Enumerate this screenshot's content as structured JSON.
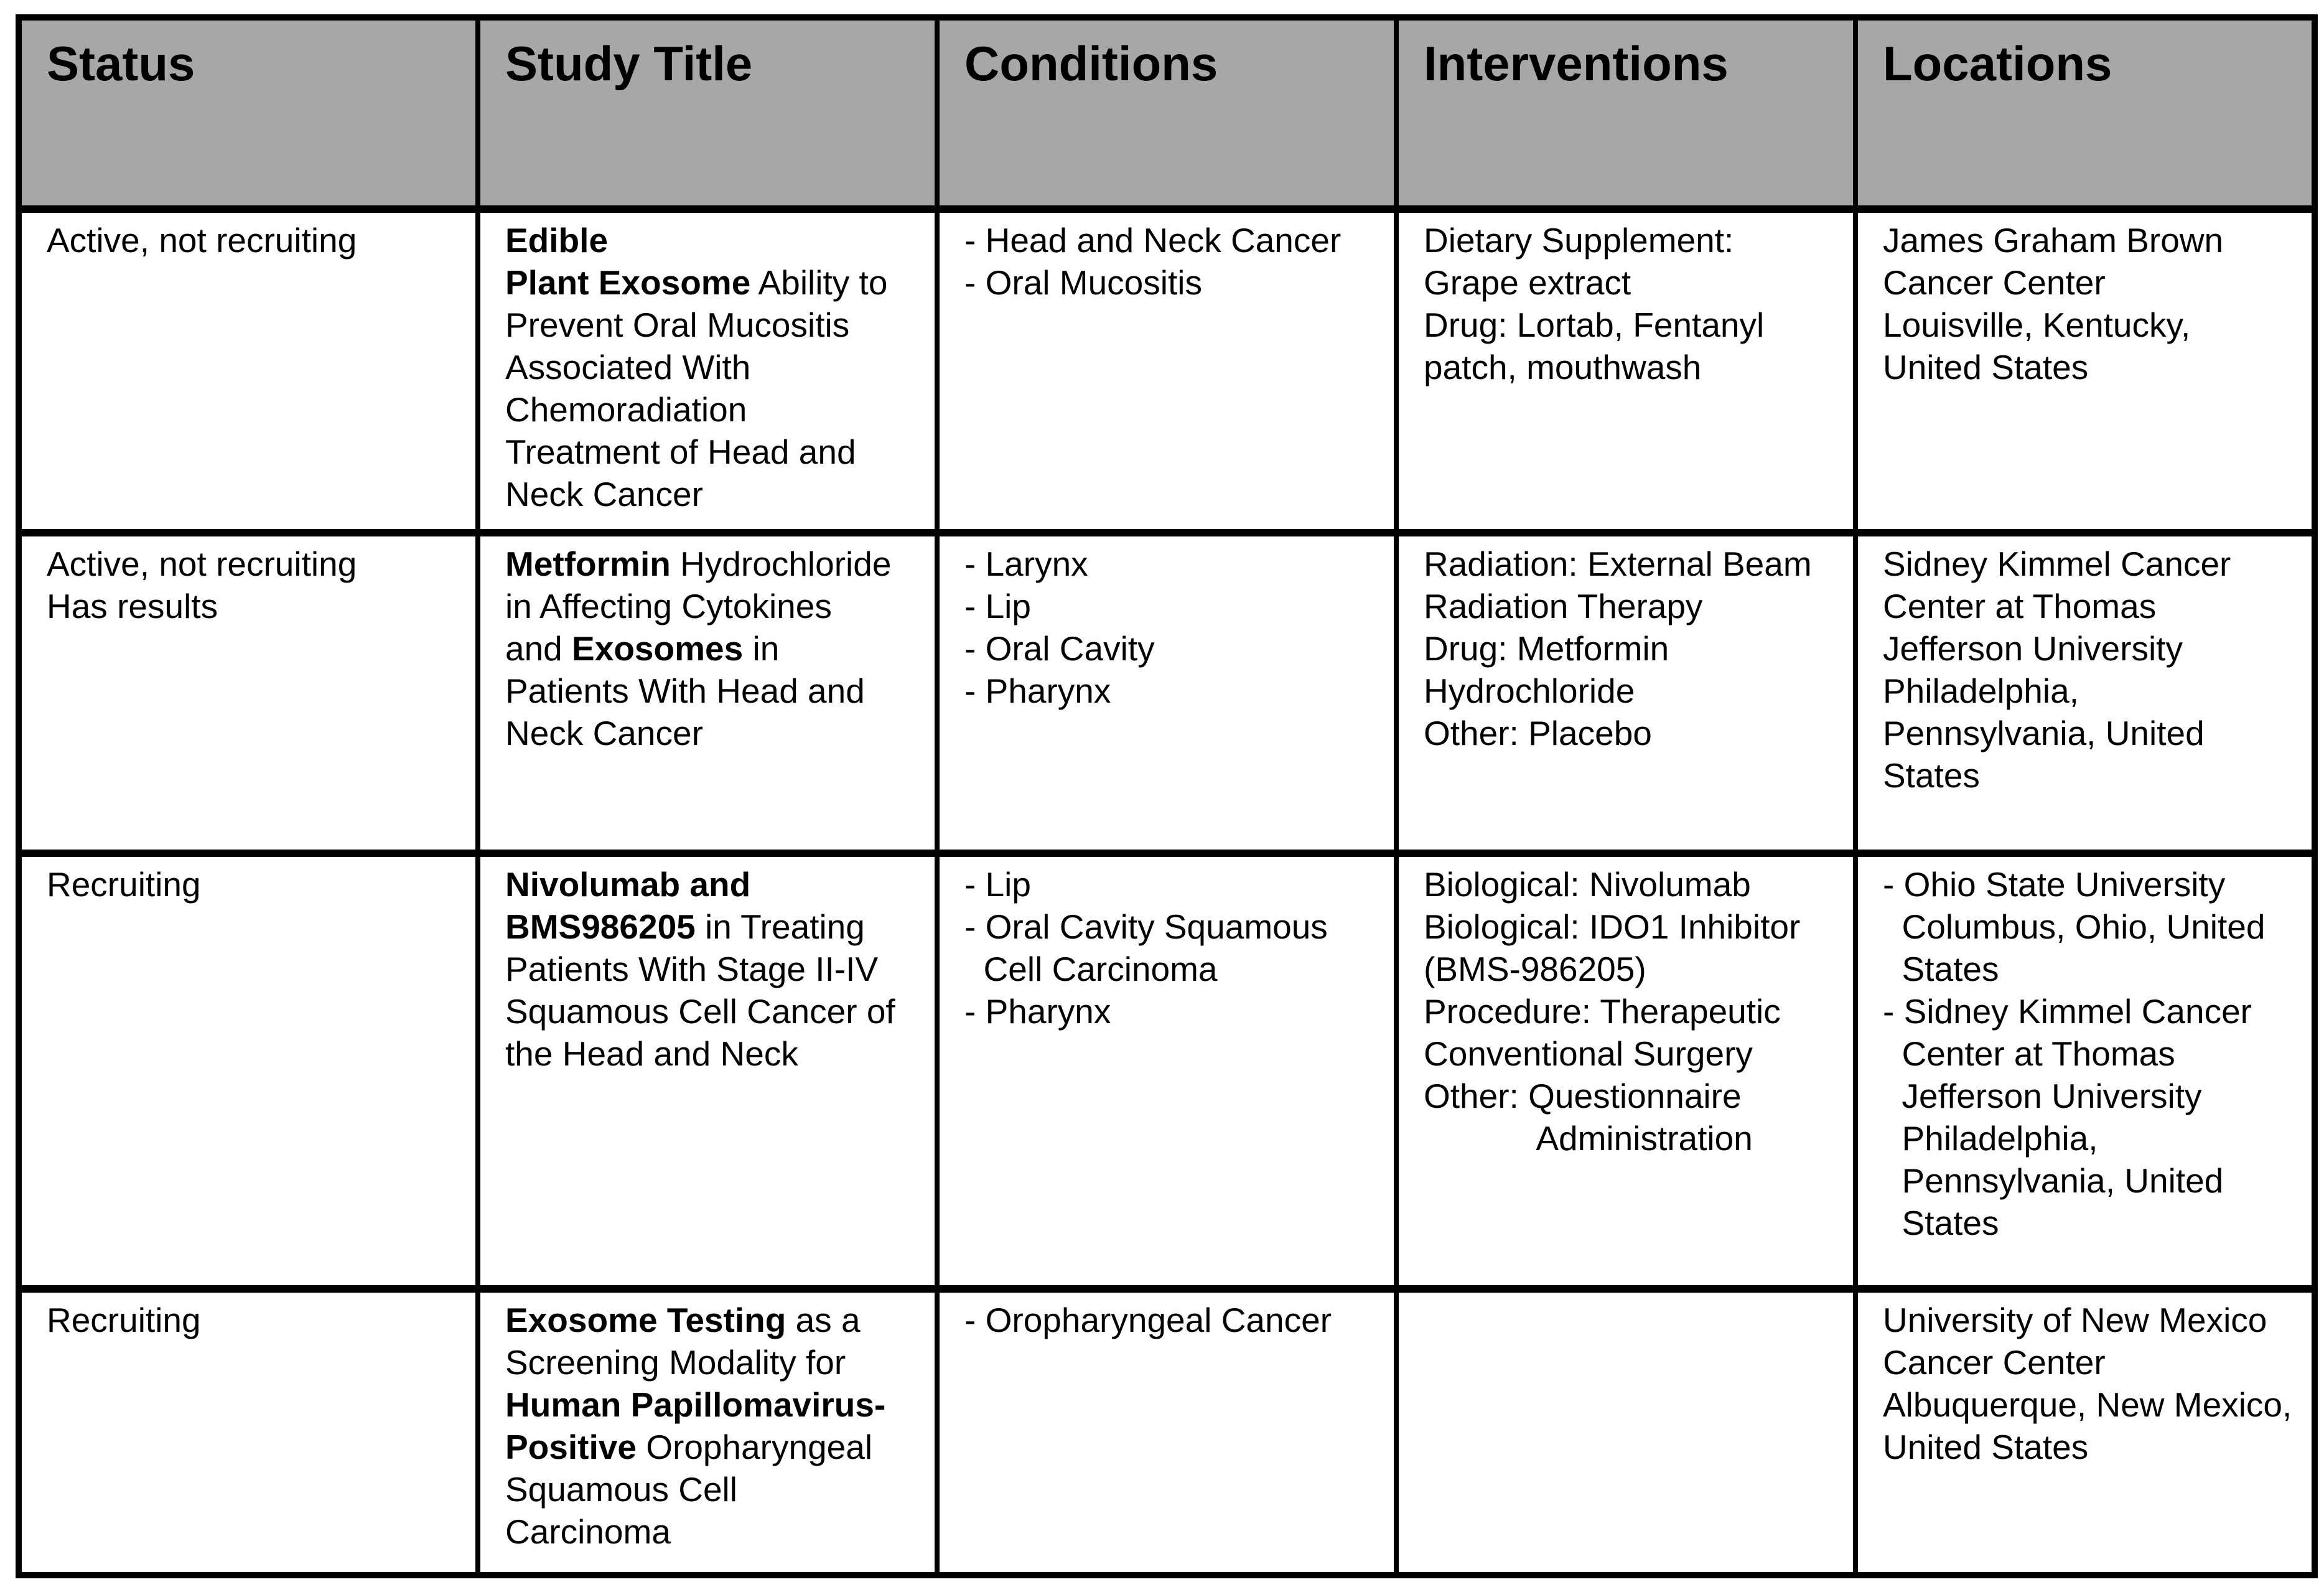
{
  "colors": {
    "header_bg": "#a7a7a7",
    "border": "#000000",
    "text": "#000000",
    "background": "#ffffff"
  },
  "table": {
    "header": {
      "columns": [
        {
          "label": "Status"
        },
        {
          "label": "Study Title"
        },
        {
          "label": "Conditions"
        },
        {
          "label": "Interventions"
        },
        {
          "label": "Locations"
        }
      ]
    },
    "rows": [
      {
        "status": "Active, not recruiting",
        "title": [
          {
            "t": "Edible\nPlant Exosome",
            "b": true
          },
          {
            "t": " Ability to\nPrevent Oral Mucositis\nAssociated With\nChemoradiation\nTreatment of Head and\nNeck Cancer",
            "b": false
          }
        ],
        "conditions": "- Head and Neck Cancer\n- Oral Mucositis",
        "interventions": "Dietary Supplement:\nGrape extract\nDrug: Lortab, Fentanyl\npatch, mouthwash",
        "locations": "James Graham Brown\nCancer Center\nLouisville, Kentucky,\nUnited States"
      },
      {
        "status": "Active, not recruiting\nHas results",
        "title": [
          {
            "t": "Metformin",
            "b": true
          },
          {
            "t": " Hydrochloride\nin Affecting Cytokines\nand ",
            "b": false
          },
          {
            "t": "Exosomes",
            "b": true
          },
          {
            "t": " in\nPatients With Head and\nNeck Cancer",
            "b": false
          }
        ],
        "conditions": "- Larynx\n- Lip\n- Oral Cavity\n- Pharynx",
        "interventions": "Radiation: External Beam\nRadiation Therapy\nDrug: Metformin\nHydrochloride\nOther: Placebo",
        "locations": "Sidney Kimmel Cancer\nCenter at Thomas\nJefferson University\nPhiladelphia,\nPennsylvania, United\nStates"
      },
      {
        "status": "Recruiting",
        "title": [
          {
            "t": "Nivolumab and\nBMS986205",
            "b": true
          },
          {
            "t": " in Treating\nPatients With Stage II-IV\nSquamous Cell Cancer of\nthe Head and Neck",
            "b": false
          }
        ],
        "conditions": "- Lip\n- Oral Cavity Squamous\n  Cell Carcinoma\n- Pharynx",
        "interventions": "Biological: Nivolumab\nBiological: IDO1 Inhibitor\n(BMS-986205)\nProcedure: Therapeutic\nConventional Surgery\nOther: Questionnaire\n            Administration",
        "locations": "- Ohio State University\n  Columbus, Ohio, United\n  States\n- Sidney Kimmel Cancer\n  Center at Thomas\n  Jefferson University\n  Philadelphia,\n  Pennsylvania, United\n  States"
      },
      {
        "status": "Recruiting",
        "title": [
          {
            "t": "Exosome Testing",
            "b": true
          },
          {
            "t": " as a\nScreening Modality for\n",
            "b": false
          },
          {
            "t": "Human Papillomavirus-\nPositive",
            "b": true
          },
          {
            "t": " Oropharyngeal\nSquamous Cell\nCarcinoma",
            "b": false
          }
        ],
        "conditions": "- Oropharyngeal Cancer",
        "interventions": "",
        "locations": "University of New Mexico\nCancer Center\nAlbuquerque, New Mexico,\nUnited States"
      }
    ]
  }
}
